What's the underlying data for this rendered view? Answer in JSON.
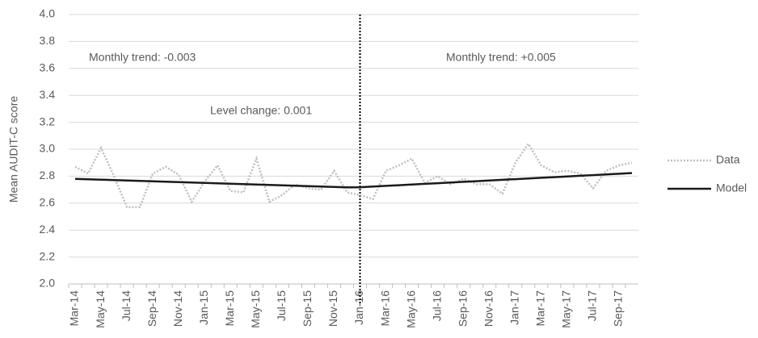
{
  "chart_data": {
    "type": "line",
    "y_label": "Mean AUDIT-C score",
    "categories": [
      "Mar-14",
      null,
      "May-14",
      null,
      "Jul-14",
      null,
      "Sep-14",
      null,
      "Nov-14",
      null,
      "Jan-15",
      null,
      "Mar-15",
      null,
      "May-15",
      null,
      "Jul-15",
      null,
      "Sep-15",
      null,
      "Nov-15",
      null,
      "Jan-16",
      null,
      "Mar-16",
      null,
      "May-16",
      null,
      "Jul-16",
      null,
      "Sep-16",
      null,
      "Nov-16",
      null,
      "Jan-17",
      null,
      "Mar-17",
      null,
      "May-17",
      null,
      "Jul-17",
      null,
      "Sep-17",
      null
    ],
    "series": [
      {
        "name": "Data",
        "color": "#bfbfbf",
        "dash": true,
        "values": [
          2.87,
          2.82,
          3.01,
          2.8,
          2.57,
          2.57,
          2.82,
          2.87,
          2.81,
          2.61,
          2.76,
          2.88,
          2.69,
          2.68,
          2.93,
          2.61,
          2.66,
          2.74,
          2.71,
          2.7,
          2.84,
          2.68,
          2.66,
          2.63,
          2.84,
          2.88,
          2.93,
          2.75,
          2.8,
          2.74,
          2.78,
          2.74,
          2.74,
          2.67,
          2.9,
          3.04,
          2.88,
          2.83,
          2.84,
          2.82,
          2.71,
          2.84,
          2.88,
          2.9
        ]
      },
      {
        "name": "Model",
        "color": "#1a1a1a",
        "dash": false,
        "values": [
          2.78,
          2.777,
          2.774,
          2.771,
          2.768,
          2.765,
          2.762,
          2.759,
          2.756,
          2.753,
          2.75,
          2.747,
          2.744,
          2.741,
          2.738,
          2.735,
          2.732,
          2.729,
          2.726,
          2.723,
          2.72,
          2.717,
          2.718,
          2.723,
          2.728,
          2.733,
          2.738,
          2.743,
          2.748,
          2.753,
          2.758,
          2.763,
          2.768,
          2.773,
          2.778,
          2.783,
          2.788,
          2.793,
          2.798,
          2.803,
          2.808,
          2.813,
          2.818,
          2.823
        ]
      }
    ],
    "ylim": [
      2.0,
      4.0
    ],
    "yticks": [
      {
        "value": 2.0,
        "label": "2.0"
      },
      2.2,
      2.4,
      2.6,
      2.8,
      {
        "value": 3.0,
        "label": "3.0"
      },
      3.2,
      3.4,
      3.6,
      3.8,
      {
        "value": 4.0,
        "label": "4.0"
      }
    ],
    "grid": true,
    "vline": "Jan-16",
    "annotations": [
      "Monthly trend: -0.003",
      "Level change: 0.001",
      "Monthly trend: +0.005"
    ],
    "legend": "right"
  }
}
